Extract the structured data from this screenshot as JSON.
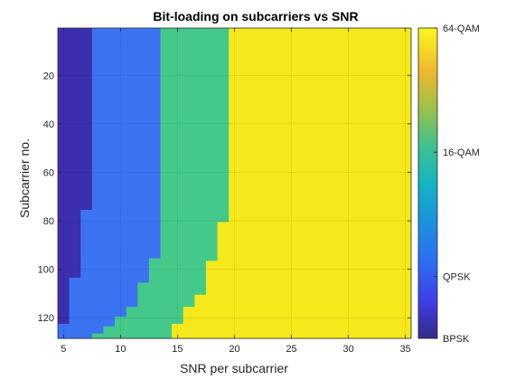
{
  "chart_data": {
    "type": "heatmap",
    "title": "Bit-loading on subcarriers vs SNR",
    "xlabel": "SNR per subcarrier",
    "ylabel": "Subcarrier no.",
    "xlim": [
      4.5,
      35.5
    ],
    "ylim": [
      0.5,
      128.5
    ],
    "y_reversed": true,
    "xticks": [
      5,
      10,
      15,
      20,
      25,
      30,
      35
    ],
    "yticks": [
      20,
      40,
      60,
      80,
      100,
      120
    ],
    "colorbar": {
      "ticks": [
        "BPSK",
        "QPSK",
        "16-QAM",
        "64-QAM"
      ],
      "tick_values": [
        1,
        2,
        4,
        6
      ],
      "range": [
        1,
        6
      ]
    },
    "colors": {
      "BPSK": "#3b2fb0",
      "QPSK": "#3b73f2",
      "16-QAM": "#45c98a",
      "64-QAM": "#f5e91b"
    },
    "regions": [
      {
        "y": [
          0.5,
          8.5
        ],
        "bounds": [
          7.5,
          13.5,
          19.5
        ]
      },
      {
        "y": [
          8.5,
          75.5
        ],
        "bounds": [
          7.5,
          13.5,
          19.5
        ]
      },
      {
        "y": [
          75.5,
          80.5
        ],
        "bounds": [
          6.5,
          13.5,
          19.5
        ]
      },
      {
        "y": [
          80.5,
          86.5
        ],
        "bounds": [
          6.5,
          13.5,
          18.5
        ]
      },
      {
        "y": [
          86.5,
          93.5
        ],
        "bounds": [
          6.5,
          13.5,
          18.5
        ]
      },
      {
        "y": [
          93.5,
          95.5
        ],
        "bounds": [
          6.5,
          13.5,
          18.5
        ]
      },
      {
        "y": [
          95.5,
          96.5
        ],
        "bounds": [
          6.5,
          12.5,
          18.5
        ]
      },
      {
        "y": [
          96.5,
          97.5
        ],
        "bounds": [
          6.5,
          12.5,
          17.5
        ]
      },
      {
        "y": [
          97.5,
          98.5
        ],
        "bounds": [
          6.5,
          12.5,
          17.5
        ]
      },
      {
        "y": [
          98.5,
          99.5
        ],
        "bounds": [
          6.5,
          12.5,
          17.5
        ]
      },
      {
        "y": [
          99.5,
          103.5
        ],
        "bounds": [
          6.5,
          12.5,
          17.5
        ]
      },
      {
        "y": [
          103.5,
          105.5
        ],
        "bounds": [
          5.5,
          12.5,
          17.5
        ]
      },
      {
        "y": [
          105.5,
          110.5
        ],
        "bounds": [
          5.5,
          11.5,
          17.5
        ]
      },
      {
        "y": [
          110.5,
          111.5
        ],
        "bounds": [
          5.5,
          11.5,
          16.5
        ]
      },
      {
        "y": [
          111.5,
          113.5
        ],
        "bounds": [
          5.5,
          11.5,
          16.5
        ]
      },
      {
        "y": [
          113.5,
          115.5
        ],
        "bounds": [
          5.5,
          11.5,
          16.5
        ]
      },
      {
        "y": [
          115.5,
          119.5
        ],
        "bounds": [
          5.5,
          10.5,
          15.5
        ]
      },
      {
        "y": [
          119.5,
          122.5
        ],
        "bounds": [
          5.5,
          9.5,
          15.5
        ]
      },
      {
        "y": [
          122.5,
          123.5
        ],
        "bounds": [
          4.5,
          9.5,
          14.5
        ]
      },
      {
        "y": [
          123.5,
          126.5
        ],
        "bounds": [
          4.5,
          8.5,
          14.5
        ]
      },
      {
        "y": [
          126.5,
          128.5
        ],
        "bounds": [
          4.5,
          7.5,
          14.5
        ]
      }
    ]
  }
}
